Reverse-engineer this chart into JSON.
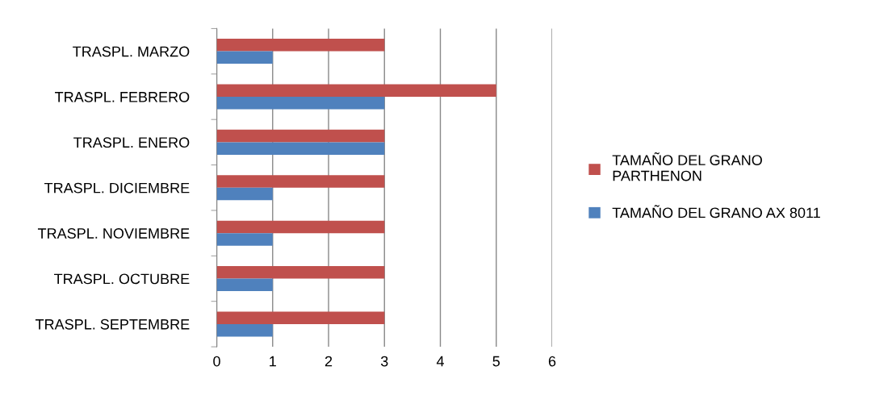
{
  "chart_data": {
    "type": "bar",
    "orientation": "horizontal",
    "categories": [
      "TRASPL. MARZO",
      "TRASPL. FEBRERO",
      "TRASPL. ENERO",
      "TRASPL. DICIEMBRE",
      "TRASPL. NOVIEMBRE",
      "TRASPL. OCTUBRE",
      "TRASPL. SEPTEMBRE"
    ],
    "series": [
      {
        "name": "TAMAÑO DEL GRANO PARTHENON",
        "color": "#c0504d",
        "values": [
          3,
          5,
          3,
          3,
          3,
          3,
          3
        ]
      },
      {
        "name": "TAMAÑO DEL GRANO AX 8011",
        "color": "#4f81bd",
        "values": [
          1,
          3,
          3,
          1,
          1,
          1,
          1
        ]
      }
    ],
    "xlim": [
      0,
      6
    ],
    "xticks": [
      0,
      1,
      2,
      3,
      4,
      5,
      6
    ],
    "grid": "x",
    "legend": "right"
  }
}
